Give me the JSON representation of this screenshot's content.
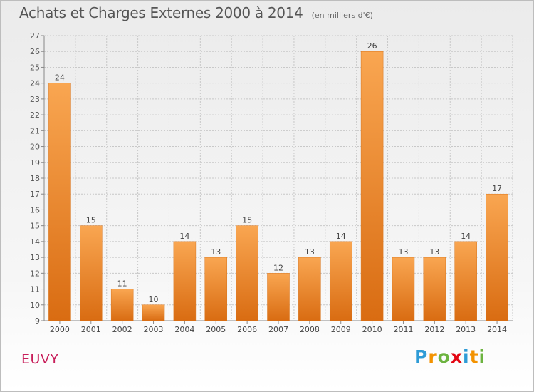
{
  "page": {
    "title": "Achats et Charges Externes 2000 à 2014",
    "subtitle": "(en milliers d'€)",
    "city": "EUVY",
    "brand": {
      "letters": [
        "P",
        "r",
        "o",
        "x",
        "i",
        "t",
        "i"
      ],
      "colors": [
        "#2e9bd6",
        "#f39200",
        "#6cb33f",
        "#e30613",
        "#2e9bd6",
        "#f39200",
        "#6cb33f"
      ]
    }
  },
  "chart_data": {
    "type": "bar",
    "categories": [
      "2000",
      "2001",
      "2002",
      "2003",
      "2004",
      "2005",
      "2006",
      "2007",
      "2008",
      "2009",
      "2010",
      "2011",
      "2012",
      "2013",
      "2014"
    ],
    "values": [
      24,
      15,
      11,
      10,
      14,
      13,
      15,
      12,
      13,
      14,
      26,
      13,
      13,
      14,
      17
    ],
    "ylim": [
      9,
      27
    ],
    "yticks": [
      9,
      10,
      11,
      12,
      13,
      14,
      15,
      16,
      17,
      18,
      19,
      20,
      21,
      22,
      23,
      24,
      25,
      26,
      27
    ],
    "grid": true,
    "bar_color": "#f0902a",
    "data_labels": true
  }
}
